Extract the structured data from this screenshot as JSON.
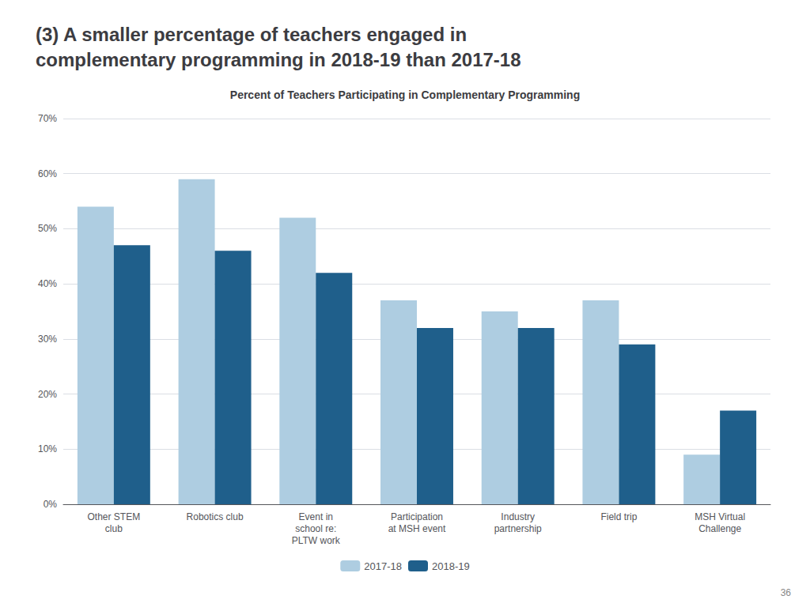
{
  "chart_data": {
    "type": "bar",
    "title": "(3) A smaller percentage of teachers engaged in\ncomplementary programming in 2018-19 than 2017-18",
    "subtitle": "Percent of Teachers Participating in Complementary Programming",
    "categories": [
      "Other STEM\nclub",
      "Robotics club",
      "Event in\nschool re:\nPLTW work",
      "Participation\nat MSH event",
      "Industry\npartnership",
      "Field trip",
      "MSH Virtual\nChallenge"
    ],
    "series": [
      {
        "name": "2017-18",
        "color": "#aecde1",
        "values": [
          54,
          59,
          52,
          37,
          35,
          37,
          9
        ]
      },
      {
        "name": "2018-19",
        "color": "#1f5f8b",
        "values": [
          47,
          46,
          42,
          32,
          32,
          29,
          17
        ]
      }
    ],
    "ylim": [
      0,
      70
    ],
    "yticks": [
      {
        "value": 0,
        "label": "0%"
      },
      {
        "value": 10,
        "label": "10%"
      },
      {
        "value": 20,
        "label": "20%"
      },
      {
        "value": 30,
        "label": "30%"
      },
      {
        "value": 40,
        "label": "40%"
      },
      {
        "value": 50,
        "label": "50%"
      },
      {
        "value": 60,
        "label": "60%"
      },
      {
        "value": 70,
        "label": "70%"
      }
    ],
    "grid": true,
    "legend": "bottom",
    "annotations": [
      "36"
    ]
  }
}
